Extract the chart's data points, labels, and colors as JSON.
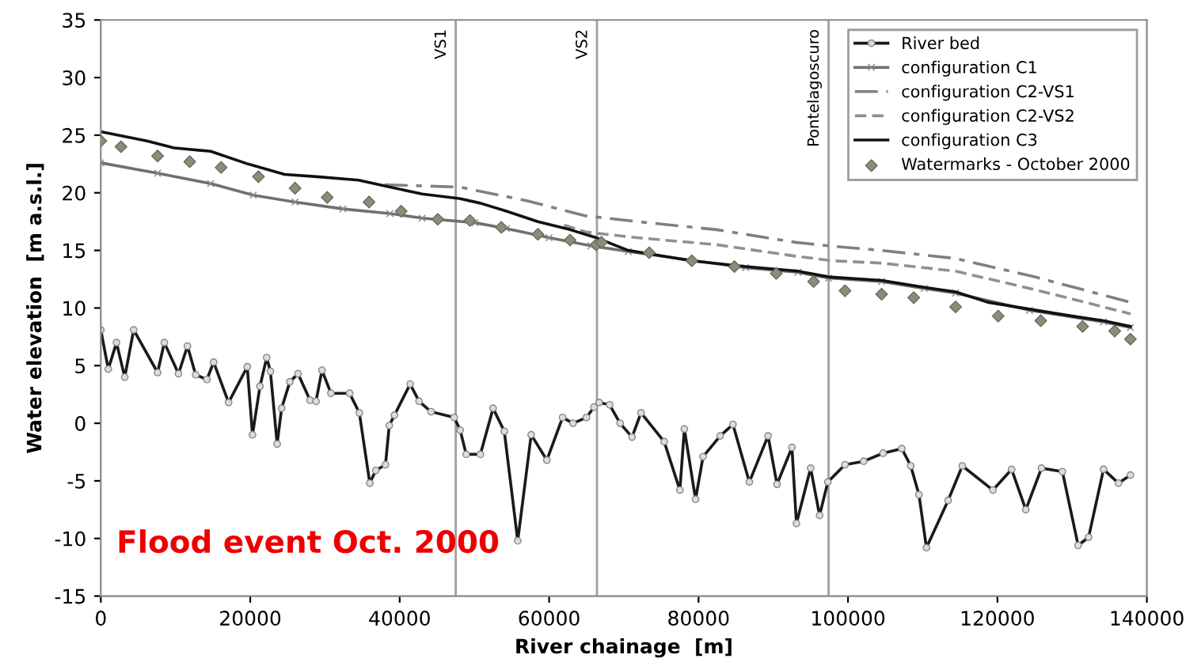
{
  "chart_data": {
    "type": "line",
    "xlabel": "River chainage  [m]",
    "ylabel": "Water elevation  [m a.s.l.]",
    "xlim": [
      0,
      140000
    ],
    "ylim": [
      -15,
      35
    ],
    "xticks": [
      0,
      20000,
      40000,
      60000,
      80000,
      100000,
      120000,
      140000
    ],
    "yticks": [
      -15,
      -10,
      -5,
      0,
      5,
      10,
      15,
      20,
      25,
      30,
      35
    ],
    "grid": false,
    "legend": "top right",
    "annotations": [
      "Flood event Oct. 2000"
    ],
    "ref_lines": [
      {
        "axis": "x",
        "value": 47500,
        "label": "VS1",
        "color": "#a0a0a0"
      },
      {
        "axis": "x",
        "value": 66400,
        "label": "VS2",
        "color": "#a0a0a0"
      },
      {
        "axis": "x",
        "value": 97400,
        "label": "Pontelagoscuro",
        "color": "#a0a0a0"
      }
    ],
    "series": [
      {
        "name": "River bed",
        "color": "#1a1a1a",
        "marker": "circle",
        "line_style": "solid",
        "x": [
          0,
          1000,
          2100,
          3200,
          4400,
          7600,
          8500,
          10400,
          11600,
          12700,
          14200,
          15100,
          17100,
          19600,
          20300,
          21300,
          22200,
          22700,
          23600,
          24200,
          25300,
          26400,
          28000,
          28800,
          29600,
          30800,
          33300,
          34600,
          36000,
          36800,
          38100,
          38600,
          39300,
          41400,
          42600,
          44200,
          47300,
          48100,
          48900,
          50800,
          52500,
          54000,
          55800,
          57600,
          59700,
          61800,
          63200,
          65000,
          66000,
          66700,
          68100,
          69500,
          71100,
          72300,
          75400,
          77500,
          78100,
          79600,
          80600,
          82900,
          84600,
          86800,
          89300,
          90500,
          92500,
          93100,
          95000,
          96200,
          97300,
          99600,
          102100,
          104700,
          107200,
          108400,
          109500,
          110500,
          113400,
          115300,
          119400,
          121900,
          123800,
          125900,
          128700,
          130800,
          132200,
          134200,
          136200,
          137800
        ],
        "values": [
          8.1,
          4.7,
          7.0,
          4.0,
          8.1,
          4.4,
          7.0,
          4.3,
          6.7,
          4.2,
          3.8,
          5.3,
          1.8,
          4.9,
          -1.0,
          3.2,
          5.7,
          4.5,
          -1.8,
          1.3,
          3.6,
          4.3,
          2.0,
          1.9,
          4.6,
          2.6,
          2.6,
          0.9,
          -5.2,
          -4.1,
          -3.6,
          -0.2,
          0.7,
          3.4,
          1.9,
          1.0,
          0.5,
          -0.6,
          -2.7,
          -2.7,
          1.3,
          -0.7,
          -10.2,
          -1.0,
          -3.2,
          0.5,
          0.0,
          0.5,
          1.4,
          1.8,
          1.6,
          0.0,
          -1.2,
          0.9,
          -1.6,
          -5.8,
          -0.5,
          -6.6,
          -2.9,
          -1.1,
          -0.1,
          -5.1,
          -1.1,
          -5.3,
          -2.1,
          -8.7,
          -3.9,
          -8.0,
          -5.1,
          -3.6,
          -3.3,
          -2.6,
          -2.2,
          -3.7,
          -6.2,
          -10.8,
          -6.7,
          -3.7,
          -5.8,
          -4.0,
          -7.5,
          -3.9,
          -4.2,
          -10.6,
          -9.9,
          -4.0,
          -5.2,
          -4.5
        ]
      },
      {
        "name": "configuration C1",
        "color": "#707070",
        "marker": "cross",
        "line_style": "solid",
        "x": [
          0,
          7600,
          14700,
          20400,
          26000,
          32400,
          38700,
          43000,
          50100,
          54300,
          60000,
          65600,
          70600,
          86300,
          93300,
          97400,
          104500,
          110200,
          114400,
          124300,
          134200,
          137800
        ],
        "values": [
          22.6,
          21.7,
          20.8,
          19.8,
          19.2,
          18.6,
          18.2,
          17.8,
          17.4,
          16.9,
          16.1,
          15.4,
          14.9,
          13.5,
          13.1,
          12.6,
          12.3,
          11.7,
          11.3,
          9.8,
          8.8,
          8.3
        ]
      },
      {
        "name": "configuration C2-VS1",
        "color": "#808080",
        "marker": "none",
        "line_style": "dashdot",
        "x": [
          38000,
          48000,
          57100,
          64900,
          71800,
          82400,
          93000,
          97400,
          104500,
          114400,
          125000,
          137800
        ],
        "values": [
          20.7,
          20.5,
          19.3,
          18.0,
          17.5,
          16.8,
          15.7,
          15.4,
          15.0,
          14.3,
          12.7,
          10.5
        ]
      },
      {
        "name": "configuration C2-VS2",
        "color": "#909090",
        "marker": "none",
        "line_style": "dashed",
        "x": [
          62000,
          64900,
          71800,
          82400,
          93000,
          98000,
          104500,
          114400,
          125000,
          137800
        ],
        "values": [
          17.2,
          16.6,
          16.1,
          15.5,
          14.5,
          14.1,
          13.9,
          13.2,
          11.6,
          9.5
        ]
      },
      {
        "name": "configuration C3",
        "color": "#111111",
        "marker": "none",
        "line_style": "solid",
        "x": [
          0,
          6200,
          9800,
          14700,
          19700,
          24600,
          28900,
          34500,
          38700,
          43000,
          48000,
          50800,
          54300,
          58500,
          62800,
          66300,
          70600,
          79100,
          86300,
          93300,
          97400,
          104500,
          110200,
          114400,
          118700,
          124300,
          130000,
          134200,
          137800
        ],
        "values": [
          25.3,
          24.5,
          23.9,
          23.6,
          22.5,
          21.6,
          21.4,
          21.1,
          20.5,
          19.9,
          19.5,
          19.1,
          18.4,
          17.5,
          16.8,
          16.1,
          15.0,
          14.1,
          13.6,
          13.2,
          12.7,
          12.4,
          11.8,
          11.4,
          10.5,
          9.9,
          9.3,
          8.9,
          8.4
        ]
      },
      {
        "name": "Watermarks - October 2000",
        "type": "scatter",
        "color": "#8c8c7a",
        "marker": "diamond",
        "x": [
          0,
          2700,
          7600,
          11900,
          16100,
          21100,
          26000,
          30300,
          35900,
          40200,
          45100,
          49400,
          53600,
          58500,
          62800,
          66300,
          67000,
          73400,
          79100,
          84800,
          90400,
          95400,
          99600,
          104500,
          108800,
          114400,
          120100,
          125800,
          131400,
          135700,
          137800
        ],
        "values": [
          24.5,
          24.0,
          23.2,
          22.7,
          22.2,
          21.4,
          20.4,
          19.6,
          19.2,
          18.4,
          17.7,
          17.6,
          17.0,
          16.4,
          15.9,
          15.5,
          15.7,
          14.8,
          14.1,
          13.6,
          13.0,
          12.3,
          11.5,
          11.2,
          10.9,
          10.1,
          9.3,
          8.9,
          8.4,
          8.0,
          7.3
        ]
      }
    ]
  }
}
